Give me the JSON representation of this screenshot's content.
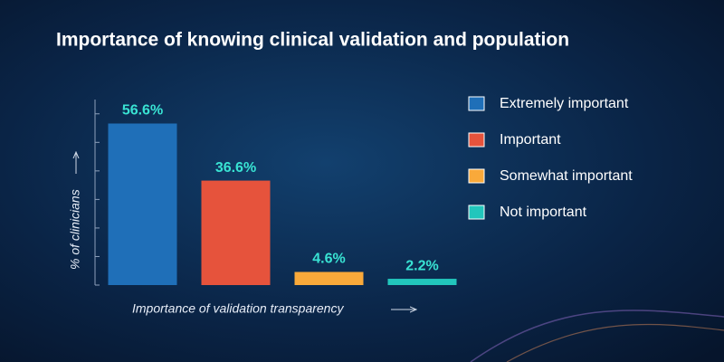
{
  "chart_data": {
    "type": "bar",
    "title": "Importance of knowing clinical validation and population",
    "x_label": "Importance of validation transparency",
    "y_label": "% of clinicians",
    "categories": [
      "Extremely important",
      "Important",
      "Somewhat important",
      "Not important"
    ],
    "values": [
      56.6,
      36.6,
      4.6,
      2.2
    ],
    "value_labels": [
      "56.6%",
      "36.6%",
      "4.6%",
      "2.2%"
    ],
    "colors": [
      "#1f6fb8",
      "#e6533c",
      "#f9a93a",
      "#22c6bc"
    ],
    "ylim": [
      0,
      65
    ],
    "yticks": [
      0,
      10,
      20,
      30,
      40,
      50,
      60
    ],
    "legend": "right"
  }
}
